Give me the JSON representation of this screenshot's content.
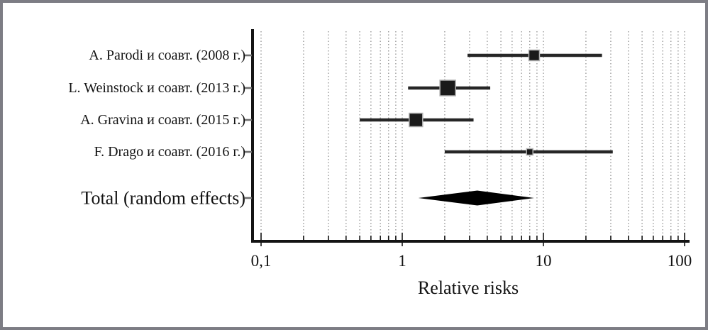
{
  "chart_data": {
    "type": "forest",
    "xlabel": "Relative risks",
    "x_scale": "log",
    "xlim": [
      0.1,
      100
    ],
    "x_ticks": [
      "0,1",
      "1",
      "10",
      "100"
    ],
    "x_tick_values": [
      0.1,
      1,
      10,
      100
    ],
    "grid": "dotted-vertical-minor-log",
    "studies": [
      {
        "label": "A. Parodi и соавт. (2008 г.)",
        "rr": 8.6,
        "ci_low": 2.9,
        "ci_high": 26.0,
        "marker_size_px": 15
      },
      {
        "label": "L. Weinstock и соавт. (2013 г.)",
        "rr": 2.1,
        "ci_low": 1.1,
        "ci_high": 4.2,
        "marker_size_px": 22
      },
      {
        "label": "A. Gravina и соавт. (2015 г.)",
        "rr": 1.25,
        "ci_low": 0.5,
        "ci_high": 3.2,
        "marker_size_px": 19
      },
      {
        "label": "F. Drago и соавт. (2016 г.)",
        "rr": 8.0,
        "ci_low": 2.0,
        "ci_high": 31.0,
        "marker_size_px": 9
      }
    ],
    "total": {
      "label": "Total (random effects)",
      "rr": 3.4,
      "ci_low": 1.3,
      "ci_high": 8.6
    },
    "colors": {
      "ink": "#141414",
      "grid": "#9b9b9b",
      "marker": "#1a1a1a",
      "diamond": "#000000"
    }
  }
}
